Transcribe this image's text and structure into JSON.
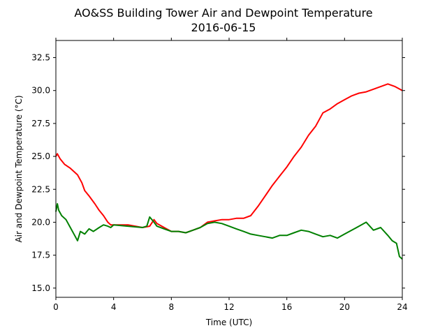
{
  "chart_data": {
    "type": "line",
    "title": "AO&SS Building Tower Air and Dewpoint Temperature",
    "subtitle": "2016-06-15",
    "xlabel": "Time (UTC)",
    "ylabel": "Air and Dewpoint Temperature (°C)",
    "xlim": [
      0,
      24
    ],
    "ylim": [
      14.3,
      33.8
    ],
    "xticks": [
      0,
      4,
      8,
      12,
      16,
      20,
      24
    ],
    "xtick_labels": [
      "0",
      "4",
      "8",
      "12",
      "16",
      "20",
      "24"
    ],
    "yticks": [
      15.0,
      17.5,
      20.0,
      22.5,
      25.0,
      27.5,
      30.0,
      32.5
    ],
    "ytick_labels": [
      "15.0",
      "17.5",
      "20.0",
      "22.5",
      "25.0",
      "27.5",
      "30.0",
      "32.5"
    ],
    "grid": false,
    "series": [
      {
        "color": "#ff0000",
        "x": [
          0,
          0.1,
          0.3,
          0.6,
          1.0,
          1.5,
          1.8,
          2.0,
          2.3,
          2.7,
          3.0,
          3.3,
          3.6,
          3.8,
          4.0,
          5.0,
          6.0,
          6.5,
          6.8,
          7.0,
          7.5,
          8.0,
          8.5,
          9.0,
          9.5,
          10.0,
          10.5,
          11.0,
          11.5,
          12.0,
          12.5,
          13.0,
          13.5,
          14.0,
          14.5,
          15.0,
          15.5,
          16.0,
          16.5,
          17.0,
          17.5,
          18.0,
          18.5,
          19.0,
          19.5,
          20.0,
          20.5,
          21.0,
          21.5,
          22.0,
          22.5,
          23.0,
          23.5,
          24.0
        ],
        "values": [
          25.0,
          25.2,
          24.8,
          24.4,
          24.1,
          23.6,
          23.0,
          22.4,
          22.0,
          21.4,
          20.9,
          20.5,
          20.0,
          19.8,
          19.8,
          19.8,
          19.6,
          19.7,
          20.2,
          19.9,
          19.6,
          19.3,
          19.3,
          19.2,
          19.4,
          19.6,
          20.0,
          20.1,
          20.2,
          20.2,
          20.3,
          20.3,
          20.5,
          21.2,
          22.0,
          22.8,
          23.5,
          24.2,
          25.0,
          25.7,
          26.6,
          27.3,
          28.3,
          28.6,
          29.0,
          29.3,
          29.6,
          29.8,
          29.9,
          30.1,
          30.3,
          30.5,
          30.3,
          30.0
        ]
      },
      {
        "color": "#008000",
        "x": [
          0,
          0.1,
          0.2,
          0.4,
          0.7,
          1.0,
          1.3,
          1.5,
          1.7,
          2.0,
          2.3,
          2.6,
          3.0,
          3.3,
          3.6,
          3.8,
          4.0,
          5.0,
          6.0,
          6.3,
          6.5,
          6.8,
          7.0,
          7.5,
          8.0,
          8.5,
          9.0,
          9.5,
          10.0,
          10.5,
          11.0,
          11.5,
          12.0,
          12.5,
          13.0,
          13.5,
          14.0,
          14.5,
          15.0,
          15.5,
          16.0,
          16.5,
          17.0,
          17.5,
          18.0,
          18.5,
          19.0,
          19.5,
          20.0,
          20.5,
          21.0,
          21.5,
          22.0,
          22.5,
          23.0,
          23.3,
          23.6,
          23.8,
          24.0
        ],
        "values": [
          20.8,
          21.4,
          20.9,
          20.5,
          20.2,
          19.6,
          19.0,
          18.6,
          19.3,
          19.1,
          19.5,
          19.3,
          19.6,
          19.8,
          19.7,
          19.6,
          19.8,
          19.7,
          19.6,
          19.7,
          20.4,
          20.0,
          19.7,
          19.5,
          19.3,
          19.3,
          19.2,
          19.4,
          19.6,
          19.9,
          20.0,
          19.9,
          19.7,
          19.5,
          19.3,
          19.1,
          19.0,
          18.9,
          18.8,
          19.0,
          19.0,
          19.2,
          19.4,
          19.3,
          19.1,
          18.9,
          19.0,
          18.8,
          19.1,
          19.4,
          19.7,
          20.0,
          19.4,
          19.6,
          19.0,
          18.6,
          18.4,
          17.4,
          17.2
        ]
      }
    ]
  }
}
